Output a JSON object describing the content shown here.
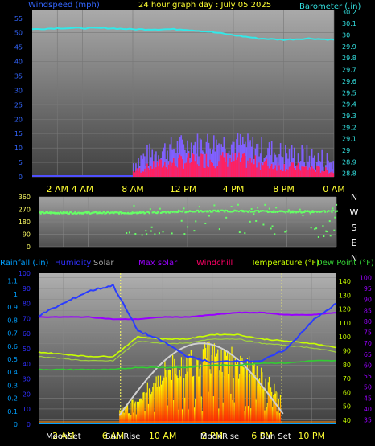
{
  "top_chart": {
    "title": "24 hour graph day : July 05 2025",
    "left_label": "Windspeed (mph)",
    "right_label": "Barometer (.in)",
    "left_ticks": [
      "55",
      "50",
      "45",
      "40",
      "35",
      "30",
      "25",
      "20",
      "15",
      "10",
      "5",
      "0"
    ],
    "right_ticks": [
      "30.2",
      "30.1",
      "30",
      "29.9",
      "29.8",
      "29.7",
      "29.6",
      "29.5",
      "29.4",
      "29.3",
      "29.2",
      "29.1",
      "29",
      "28.9",
      "28.8"
    ],
    "x_ticks": [
      "2 AM",
      "4 AM",
      "8 AM",
      "12 PM",
      "4 PM",
      "8 PM",
      "0 AM"
    ]
  },
  "mid_chart": {
    "left_ticks": [
      "360",
      "270",
      "180",
      "90",
      "0"
    ],
    "compass": [
      "N",
      "W",
      "S",
      "E",
      "N"
    ]
  },
  "bottom_chart": {
    "legend": [
      {
        "label": "Rainfall (.in)",
        "color": "#00a0ff"
      },
      {
        "label": "Humidity",
        "color": "#3030ff"
      },
      {
        "label": "Solar",
        "color": "#a0a0a0"
      },
      {
        "label": "Max solar",
        "color": "#9900ff"
      },
      {
        "label": "Windchill",
        "color": "#ff0066"
      },
      {
        "label": "Temperature (°F)",
        "color": "#c8ff00"
      },
      {
        "label": "Dew Point (°F)",
        "color": "#33cc33"
      }
    ],
    "rain_ticks": [
      "1.1",
      "1",
      "0.9",
      "0.8",
      "0.7",
      "0.6",
      "0.5",
      "0.4",
      "0.3",
      "0.2",
      "0.1",
      "0"
    ],
    "hum_ticks": [
      "100",
      "90",
      "80",
      "70",
      "60",
      "50",
      "40",
      "30",
      "20",
      "10",
      "0"
    ],
    "solar_ticks": [
      "140",
      "130",
      "120",
      "110",
      "100",
      "90",
      "80",
      "70",
      "60",
      "50",
      "40"
    ],
    "temp_ticks": [
      "100",
      "95",
      "90",
      "85",
      "80",
      "75",
      "70",
      "65",
      "60",
      "55",
      "50",
      "45",
      "40",
      "35"
    ],
    "x_ticks": [
      "2 AM",
      "6 AM",
      "10 AM",
      "2 PM",
      "6 PM",
      "10 PM"
    ],
    "events": [
      "MoonSet",
      "Sun Rise",
      "MoonRise",
      "Sun Set"
    ]
  },
  "chart_data": [
    {
      "type": "line",
      "title": "24 hour graph day : July 05 2025",
      "ylabel": "Windspeed (mph)",
      "y2label": "Barometer (.in)",
      "ylim": [
        0,
        58
      ],
      "y2lim": [
        28.77,
        30.22
      ],
      "x_hours": [
        0,
        2,
        4,
        6,
        8,
        10,
        12,
        14,
        16,
        18,
        20,
        22,
        24
      ],
      "series": [
        {
          "name": "Barometer (.in)",
          "y_axis": "right",
          "values": [
            30.05,
            30.06,
            30.06,
            30.06,
            30.05,
            30.05,
            30.05,
            30.03,
            30.0,
            29.97,
            29.96,
            29.97,
            29.96
          ]
        },
        {
          "name": "Windspeed (mph)",
          "y_axis": "left",
          "type": "bar",
          "note_range_hours": [
            8,
            24
          ],
          "values": [
            0,
            0,
            0,
            0,
            3,
            7,
            9,
            10,
            10,
            8,
            6,
            5,
            3
          ]
        }
      ]
    },
    {
      "type": "scatter",
      "ylabel": "Wind direction",
      "ylim": [
        0,
        360
      ],
      "x_hours": [
        0,
        2,
        4,
        6,
        8,
        10,
        12,
        14,
        16,
        18,
        20,
        22,
        24
      ],
      "series": [
        {
          "values": [
            245,
            245,
            245,
            245,
            245,
            250,
            255,
            258,
            258,
            255,
            252,
            255,
            255
          ]
        }
      ]
    },
    {
      "type": "line",
      "x_hours": [
        0,
        2,
        4,
        6,
        8,
        10,
        12,
        14,
        16,
        18,
        20,
        22,
        24
      ],
      "series": [
        {
          "name": "Humidity",
          "y_axis": "humidity",
          "values": [
            72,
            80,
            88,
            92,
            62,
            55,
            45,
            41,
            42,
            42,
            50,
            68,
            80
          ]
        },
        {
          "name": "Max solar",
          "y_axis": "temperature",
          "values": [
            82,
            82,
            82,
            81,
            81,
            82,
            82,
            83,
            84,
            84,
            83,
            83,
            84
          ]
        },
        {
          "name": "Temperature (°F)",
          "y_axis": "temperature",
          "values": [
            66,
            65,
            64,
            64,
            73,
            72,
            72,
            74,
            74,
            72,
            71,
            70,
            68
          ]
        },
        {
          "name": "Dew Point (°F)",
          "y_axis": "temperature",
          "values": [
            58,
            58,
            58,
            58,
            59,
            59,
            59,
            60,
            60,
            61,
            61,
            62,
            62
          ]
        },
        {
          "name": "Solar",
          "y_axis": "solar",
          "values": [
            0,
            0,
            0,
            2,
            30,
            80,
            105,
            110,
            100,
            70,
            20,
            0,
            0
          ]
        },
        {
          "name": "Rainfall (.in)",
          "y_axis": "rain",
          "values": [
            0,
            0,
            0,
            0,
            0,
            0,
            0,
            0,
            0,
            0,
            0,
            0,
            0
          ]
        }
      ]
    }
  ]
}
